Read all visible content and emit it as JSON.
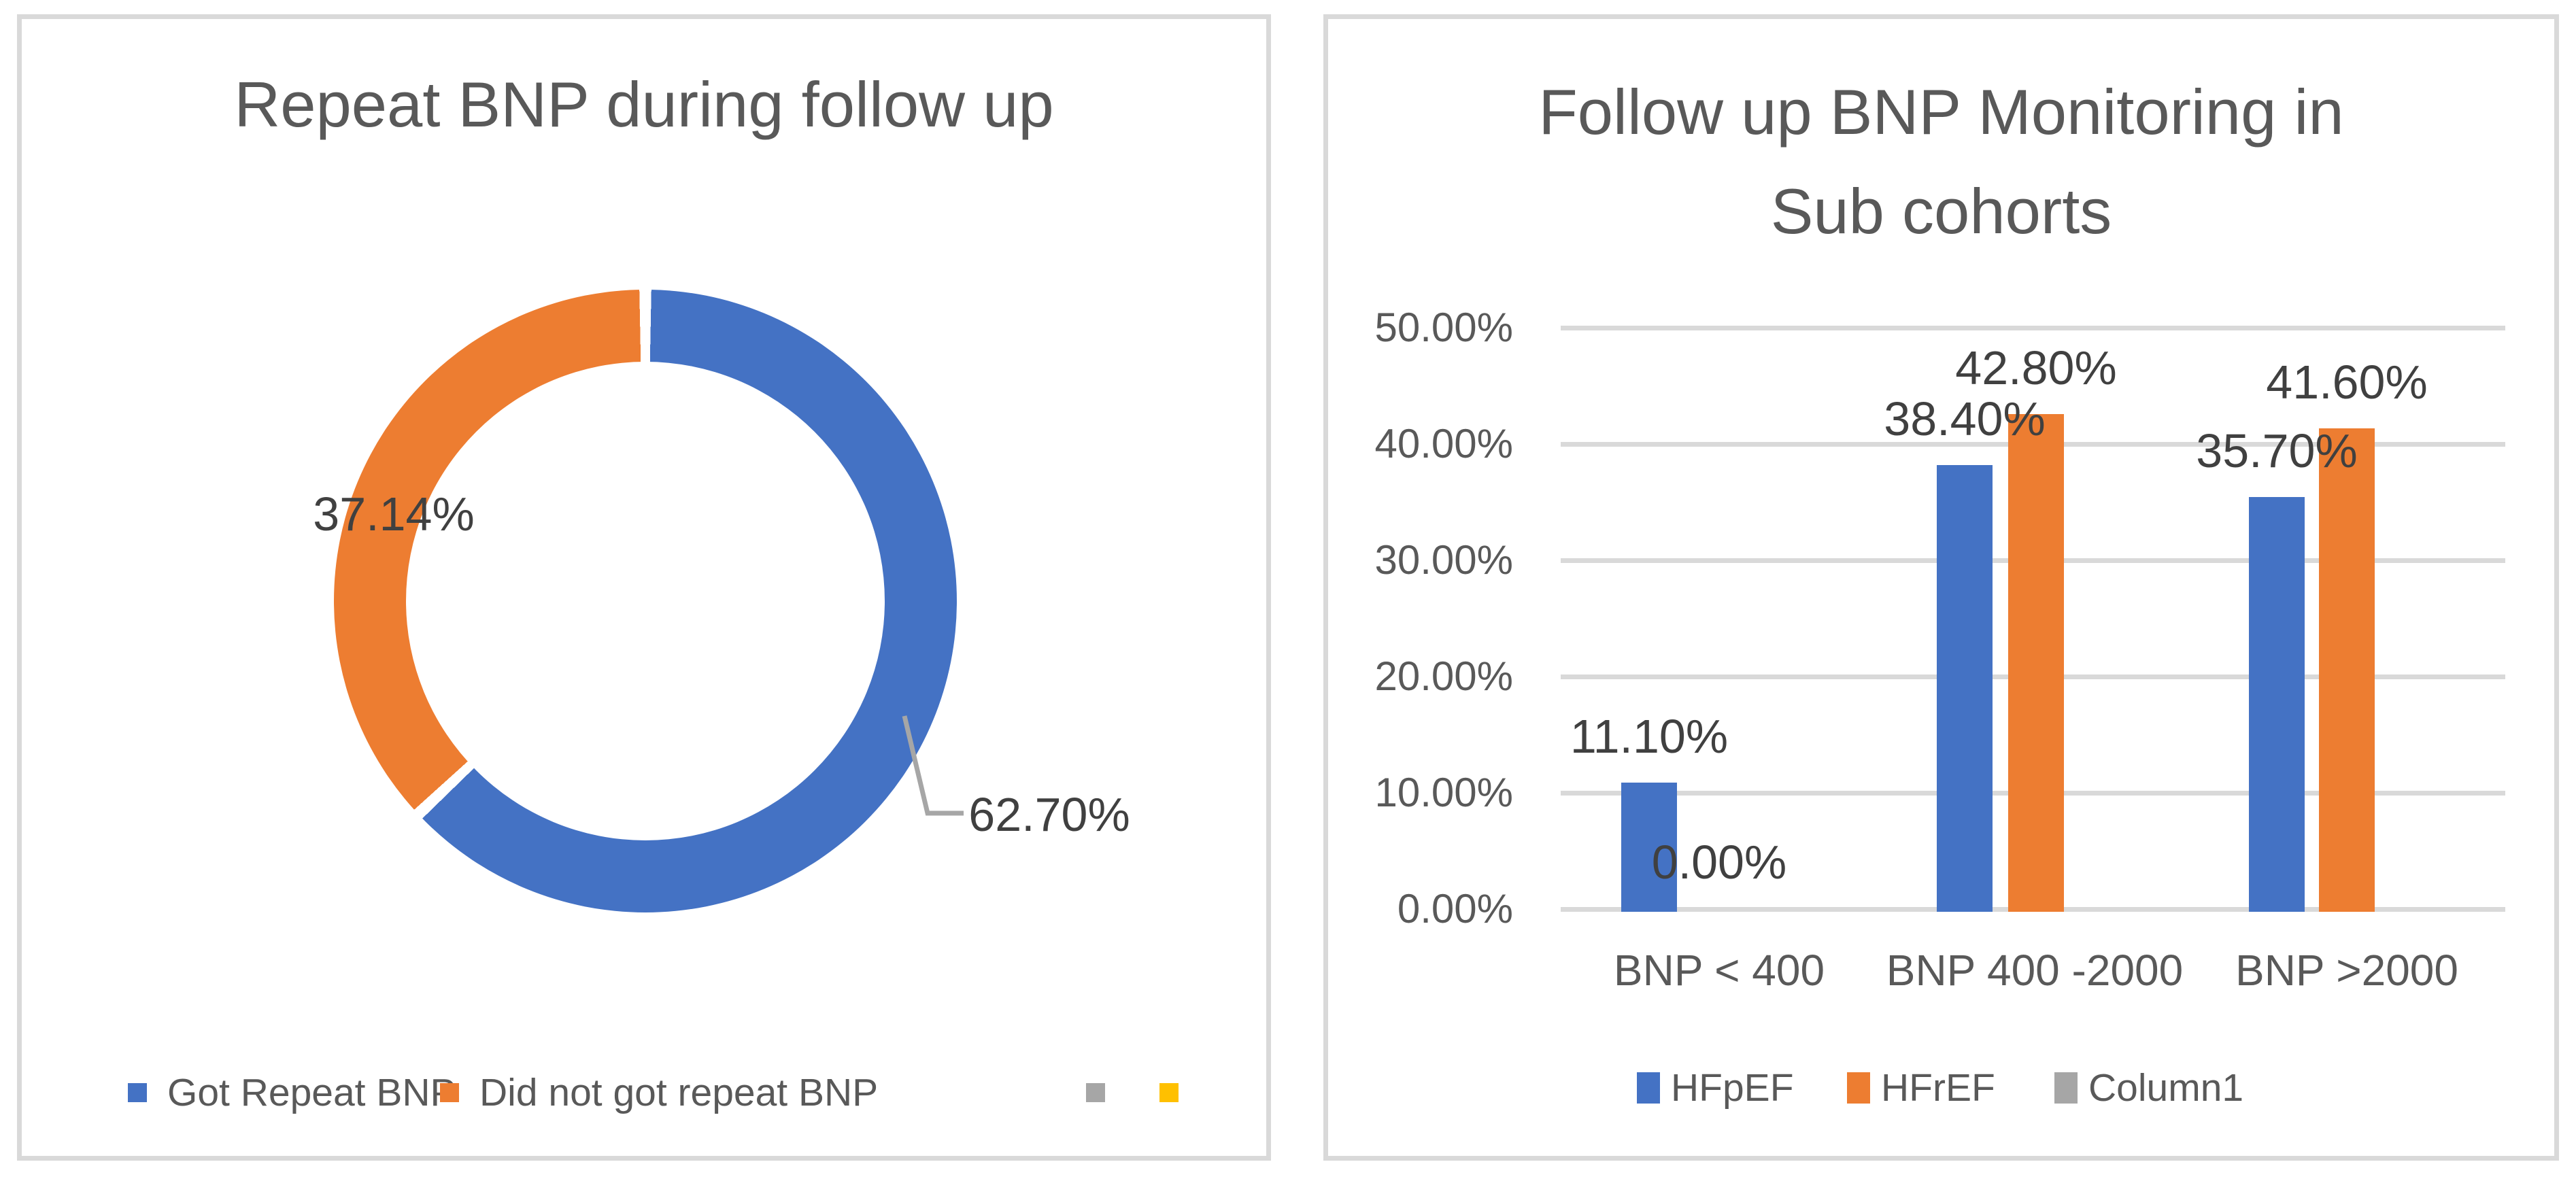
{
  "chart_data": [
    {
      "type": "pie",
      "subtype": "doughnut",
      "title": "Repeat BNP during follow up",
      "slices": [
        {
          "label": "Got Repeat BNP",
          "value": 62.7,
          "display": "62.70%",
          "color": "#4472C4"
        },
        {
          "label": "Did not got repeat BNP",
          "value": 37.14,
          "display": "37.14%",
          "color": "#ED7D31"
        }
      ],
      "legend_position": "bottom",
      "legend": [
        {
          "label": "Got Repeat BNP",
          "color": "#4472C4"
        },
        {
          "label": "Did not got repeat BNP",
          "color": "#ED7D31"
        },
        {
          "label": "",
          "color": "#A6A6A6"
        },
        {
          "label": "",
          "color": "#FFC000"
        }
      ],
      "leader_line_color": "#A6A6A6",
      "title_color": "#595959",
      "label_color": "#404040"
    },
    {
      "type": "bar",
      "title": "Follow up BNP Monitoring in Sub cohorts",
      "title_lines": [
        "Follow up BNP Monitoring in",
        "Sub cohorts"
      ],
      "categories": [
        "BNP < 400",
        "BNP 400 -2000",
        "BNP >2000"
      ],
      "series": [
        {
          "name": "HFpEF",
          "color": "#4472C4",
          "values": [
            11.1,
            38.4,
            35.7
          ],
          "labels": [
            "11.10%",
            "38.40%",
            "35.70%"
          ]
        },
        {
          "name": "HFrEF",
          "color": "#ED7D31",
          "values": [
            0.0,
            42.8,
            41.6
          ],
          "labels": [
            "0.00%",
            "42.80%",
            "41.60%"
          ]
        },
        {
          "name": "Column1",
          "color": "#A6A6A6",
          "values": [
            null,
            null,
            null
          ],
          "labels": []
        }
      ],
      "y_axis": {
        "ticks": [
          "50.00%",
          "40.00%",
          "30.00%",
          "20.00%",
          "10.00%",
          "0.00%"
        ],
        "min": 0,
        "max": 50,
        "step": 10,
        "unit": "%",
        "gridline_color": "#D9D9D9"
      },
      "grid": true,
      "legend_position": "bottom"
    }
  ]
}
